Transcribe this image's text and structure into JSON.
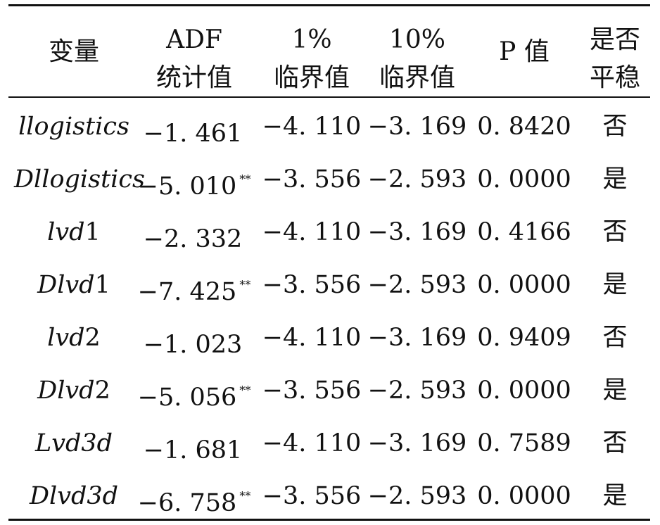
{
  "table": {
    "headers": [
      {
        "line1": "变量",
        "line2": ""
      },
      {
        "line1": "ADF",
        "line2": "统计值"
      },
      {
        "line1": "1%",
        "line2": "临界值"
      },
      {
        "line1": "10%",
        "line2": "临界值"
      },
      {
        "line1": "P 值",
        "line2": ""
      },
      {
        "line1": "是否",
        "line2": "平稳"
      }
    ],
    "rows": [
      {
        "var_italic": "llogistics",
        "var_upright": "",
        "adf": "−1. 461",
        "stars": "",
        "crit1": "−4. 110",
        "crit10": "−3. 169",
        "p": "0. 8420",
        "stationary": "否"
      },
      {
        "var_italic": "Dllogistics",
        "var_upright": "",
        "adf": "−5. 010",
        "stars": "**",
        "crit1": "−3. 556",
        "crit10": "−2. 593",
        "p": "0. 0000",
        "stationary": "是"
      },
      {
        "var_italic": "lvd",
        "var_upright": "1",
        "adf": "−2. 332",
        "stars": "",
        "crit1": "−4. 110",
        "crit10": "−3. 169",
        "p": "0. 4166",
        "stationary": "否"
      },
      {
        "var_italic": "Dlvd",
        "var_upright": "1",
        "adf": "−7. 425",
        "stars": "**",
        "crit1": "−3. 556",
        "crit10": "−2. 593",
        "p": "0. 0000",
        "stationary": "是"
      },
      {
        "var_italic": "lvd",
        "var_upright": "2",
        "adf": "−1. 023",
        "stars": "",
        "crit1": "−4. 110",
        "crit10": "−3. 169",
        "p": "0. 9409",
        "stationary": "否"
      },
      {
        "var_italic": "Dlvd",
        "var_upright": "2",
        "adf": "−5. 056",
        "stars": "**",
        "crit1": "−3. 556",
        "crit10": "−2. 593",
        "p": "0. 0000",
        "stationary": "是"
      },
      {
        "var_italic": "Lvd3d",
        "var_upright": "",
        "adf": "−1. 681",
        "stars": "",
        "crit1": "−4. 110",
        "crit10": "−3. 169",
        "p": "0. 7589",
        "stationary": "否"
      },
      {
        "var_italic": "Dlvd3d",
        "var_upright": "",
        "adf": "−6. 758",
        "stars": "**",
        "crit1": "−3. 556",
        "crit10": "−2. 593",
        "p": "0. 0000",
        "stationary": "是"
      }
    ]
  }
}
